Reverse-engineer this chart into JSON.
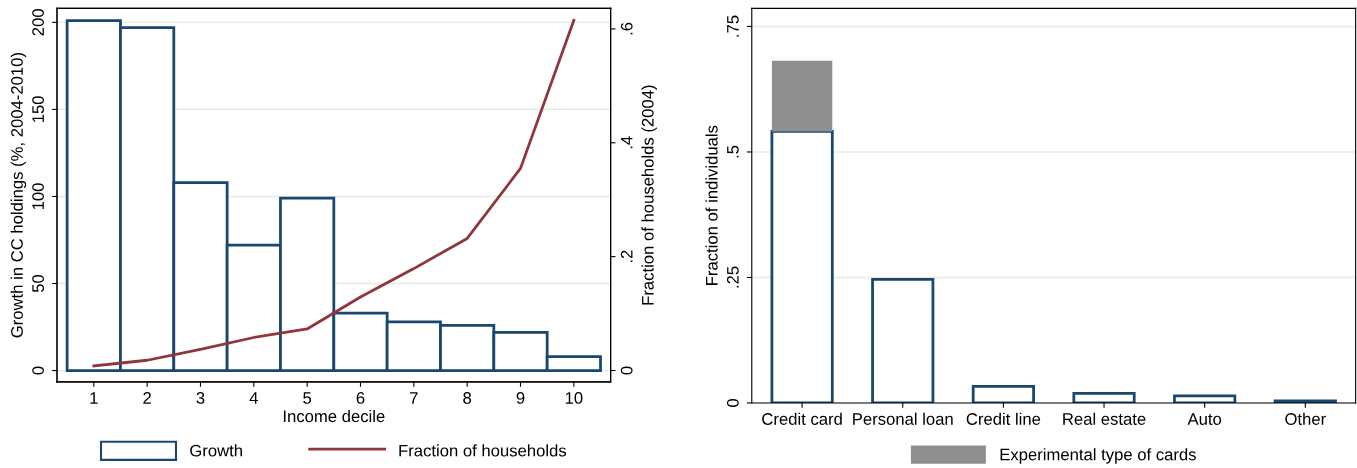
{
  "chart_data": [
    {
      "type": "bar",
      "xlabel": "Income decile",
      "ylabel": "Growth in CC holdings (%, 2004-2010)",
      "y2label": "Fraction of households (2004)",
      "x": [
        1,
        2,
        3,
        4,
        5,
        6,
        7,
        8,
        9,
        10
      ],
      "series": [
        {
          "name": "Growth",
          "type": "bar",
          "color": "#1a476f",
          "values": [
            201,
            197,
            108,
            72,
            99,
            33,
            28,
            26,
            22,
            8
          ]
        },
        {
          "name": "Fraction of households",
          "type": "line",
          "axis": "y2",
          "color": "#90353b",
          "values": [
            0.008,
            0.018,
            0.037,
            0.058,
            0.073,
            0.129,
            0.179,
            0.232,
            0.355,
            0.615
          ]
        }
      ],
      "xlim": [
        0.31,
        10.69
      ],
      "xticks": [
        1,
        2,
        3,
        4,
        5,
        6,
        7,
        8,
        9,
        10
      ],
      "ylim": [
        -6.5,
        208
      ],
      "yticks": [
        0,
        50,
        100,
        150,
        200
      ],
      "y2lim": [
        -0.02,
        0.636
      ],
      "y2ticks": [
        0,
        {
          "value": 0.2,
          "label": ".2"
        },
        {
          "value": 0.4,
          "label": ".4"
        },
        {
          "value": 0.6,
          "label": ".6"
        }
      ],
      "grid": "y",
      "legend": "bottom",
      "marker": "none",
      "line_style": "solid"
    },
    {
      "type": "bar",
      "ylabel": "Fraction of individuals",
      "stacked": true,
      "categories": [
        "Credit card",
        "Personal loan",
        "Credit line",
        "Real estate",
        "Auto",
        "Other"
      ],
      "series": [
        {
          "color": "#1a476f",
          "values": [
            0.541,
            0.246,
            0.033,
            0.019,
            0.014,
            0.004
          ]
        },
        {
          "name": "Experimental type of cards",
          "color": "#8f8f8f",
          "values": [
            0.141,
            0,
            0,
            0,
            0,
            0
          ]
        }
      ],
      "ylim": [
        0,
        0.786
      ],
      "yticks": [
        0,
        {
          "value": 0.25,
          "label": ".25"
        },
        {
          "value": 0.5,
          "label": ".5"
        },
        {
          "value": 0.75,
          "label": ".75"
        }
      ],
      "grid": "y",
      "legend": "bottom"
    }
  ]
}
